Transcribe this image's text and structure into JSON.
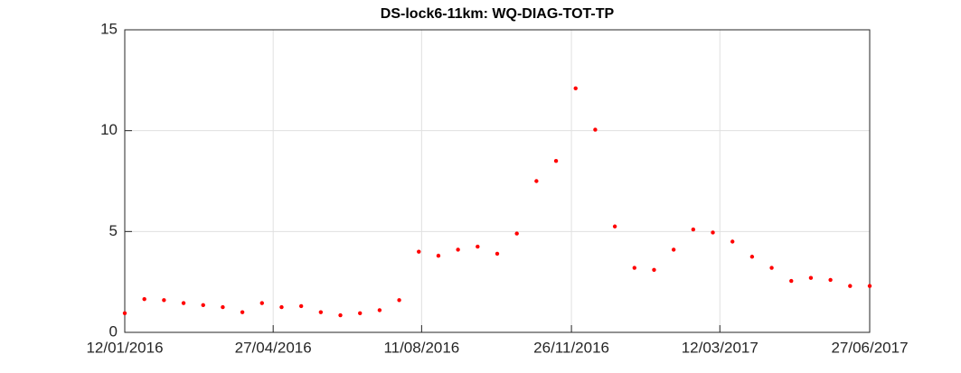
{
  "chart_data": {
    "type": "scatter",
    "title": "DS-lock6-11km: WQ-DIAG-TOT-TP",
    "color": "#ff0000",
    "grid": true,
    "x": [
      "2016-01-12",
      "2016-01-26",
      "2016-02-09",
      "2016-02-23",
      "2016-03-08",
      "2016-03-22",
      "2016-04-05",
      "2016-04-19",
      "2016-05-03",
      "2016-05-17",
      "2016-05-31",
      "2016-06-14",
      "2016-06-28",
      "2016-07-12",
      "2016-07-26",
      "2016-08-09",
      "2016-08-23",
      "2016-09-06",
      "2016-09-20",
      "2016-10-04",
      "2016-10-18",
      "2016-11-01",
      "2016-11-15",
      "2016-11-29",
      "2016-12-13",
      "2016-12-27",
      "2017-01-10",
      "2017-01-24",
      "2017-02-07",
      "2017-02-21",
      "2017-03-07",
      "2017-03-21",
      "2017-04-04",
      "2017-04-18",
      "2017-05-02",
      "2017-05-16",
      "2017-05-30",
      "2017-06-13",
      "2017-06-27"
    ],
    "values": [
      0.95,
      1.65,
      1.6,
      1.45,
      1.35,
      1.25,
      1.0,
      1.45,
      1.25,
      1.3,
      1.0,
      0.85,
      0.95,
      1.1,
      1.6,
      4.0,
      3.8,
      4.1,
      4.25,
      3.9,
      4.9,
      7.5,
      8.5,
      12.1,
      10.05,
      5.25,
      3.2,
      3.1,
      4.1,
      5.1,
      4.95,
      4.5,
      3.75,
      3.2,
      2.55,
      2.7,
      2.6,
      2.3,
      2.3
    ],
    "xlim": [
      "2016-01-12",
      "2017-06-27"
    ],
    "xticks": [
      {
        "value": "2016-01-12",
        "label": "12/01/2016"
      },
      {
        "value": "2016-04-27",
        "label": "27/04/2016"
      },
      {
        "value": "2016-08-11",
        "label": "11/08/2016"
      },
      {
        "value": "2016-11-26",
        "label": "26/11/2016"
      },
      {
        "value": "2017-03-12",
        "label": "12/03/2017"
      },
      {
        "value": "2017-06-27",
        "label": "27/06/2017"
      }
    ],
    "ylim": [
      0,
      15
    ],
    "yticks": [
      0,
      5,
      10,
      15
    ]
  }
}
